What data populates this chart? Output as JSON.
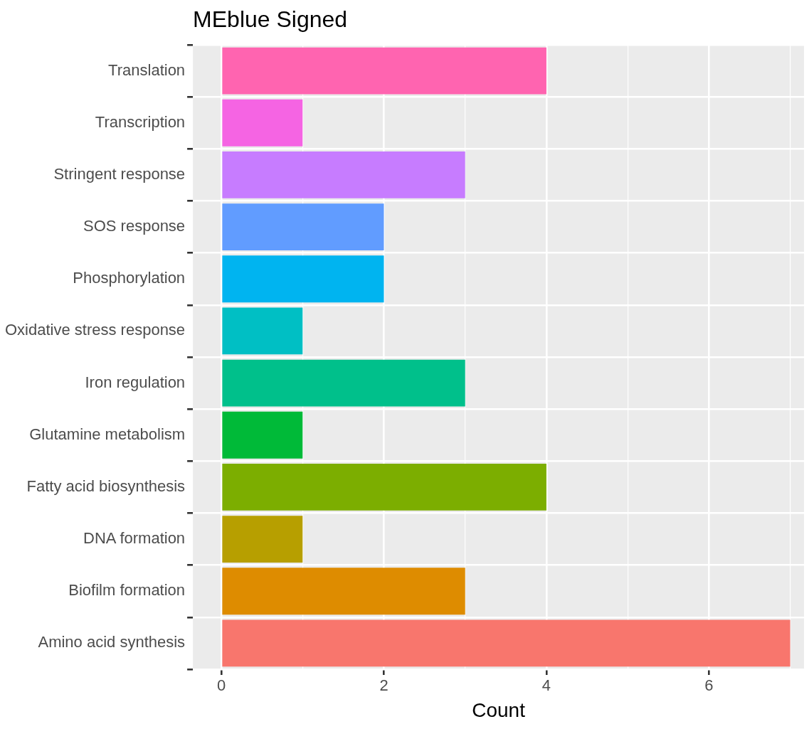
{
  "chart_data": {
    "type": "bar",
    "orientation": "horizontal",
    "title": "MEblue Signed",
    "xlabel": "Count",
    "categories": [
      "Translation",
      "Transcription",
      "Stringent response",
      "SOS response",
      "Phosphorylation",
      "Oxidative stress response",
      "Iron regulation",
      "Glutamine metabolism",
      "Fatty acid biosynthesis",
      "DNA formation",
      "Biofilm formation",
      "Amino acid synthesis"
    ],
    "values": [
      4,
      1,
      3,
      2,
      2,
      1,
      3,
      1,
      4,
      1,
      3,
      7
    ],
    "colors": [
      "#ff64b0",
      "#f564e3",
      "#c77cff",
      "#619cff",
      "#00b4f0",
      "#00bfc4",
      "#00c08b",
      "#00ba38",
      "#7cae00",
      "#b79f00",
      "#de8c00",
      "#f8766d"
    ],
    "xlim": [
      -0.35,
      7.17
    ],
    "xticks": [
      0,
      {
        "value": 1,
        "label": null
      },
      2,
      {
        "value": 3,
        "label": null
      },
      4,
      {
        "value": 5,
        "label": null
      },
      6,
      {
        "value": 7,
        "label": null
      }
    ],
    "grid": true,
    "legend": false
  }
}
